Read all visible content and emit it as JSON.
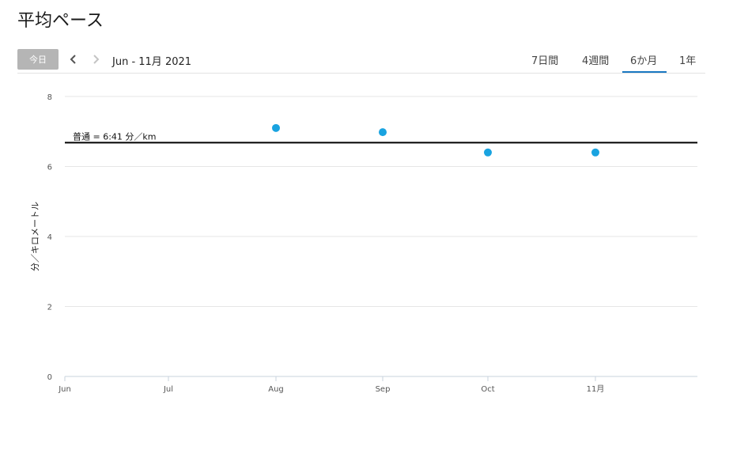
{
  "page": {
    "title": "平均ペース"
  },
  "toolbar": {
    "today_label": "今日",
    "date_range": "Jun - 11月 2021",
    "tabs": [
      {
        "label": "7日間",
        "active": false
      },
      {
        "label": "4週間",
        "active": false
      },
      {
        "label": "6か月",
        "active": true
      },
      {
        "label": "1年",
        "active": false
      }
    ]
  },
  "colors": {
    "point": "#19a3e0",
    "reference_line": "#000000",
    "grid": "#e6e6e6",
    "active_tab_underline": "#1a78c2",
    "today_button": "#b5b5b5"
  },
  "chart_data": {
    "type": "scatter",
    "ylabel": "分／キロメートル",
    "ylim": [
      0,
      8
    ],
    "yticks": [
      "0",
      "2",
      "4",
      "6",
      "8"
    ],
    "categories": [
      "Jun",
      "Jul",
      "Aug",
      "Sep",
      "Oct",
      "11月"
    ],
    "values": [
      null,
      null,
      7.1,
      6.98,
      6.4,
      6.4
    ],
    "reference_line": {
      "label": "普通 = 6:41 分／km",
      "value": 6.68
    },
    "grid": true
  }
}
